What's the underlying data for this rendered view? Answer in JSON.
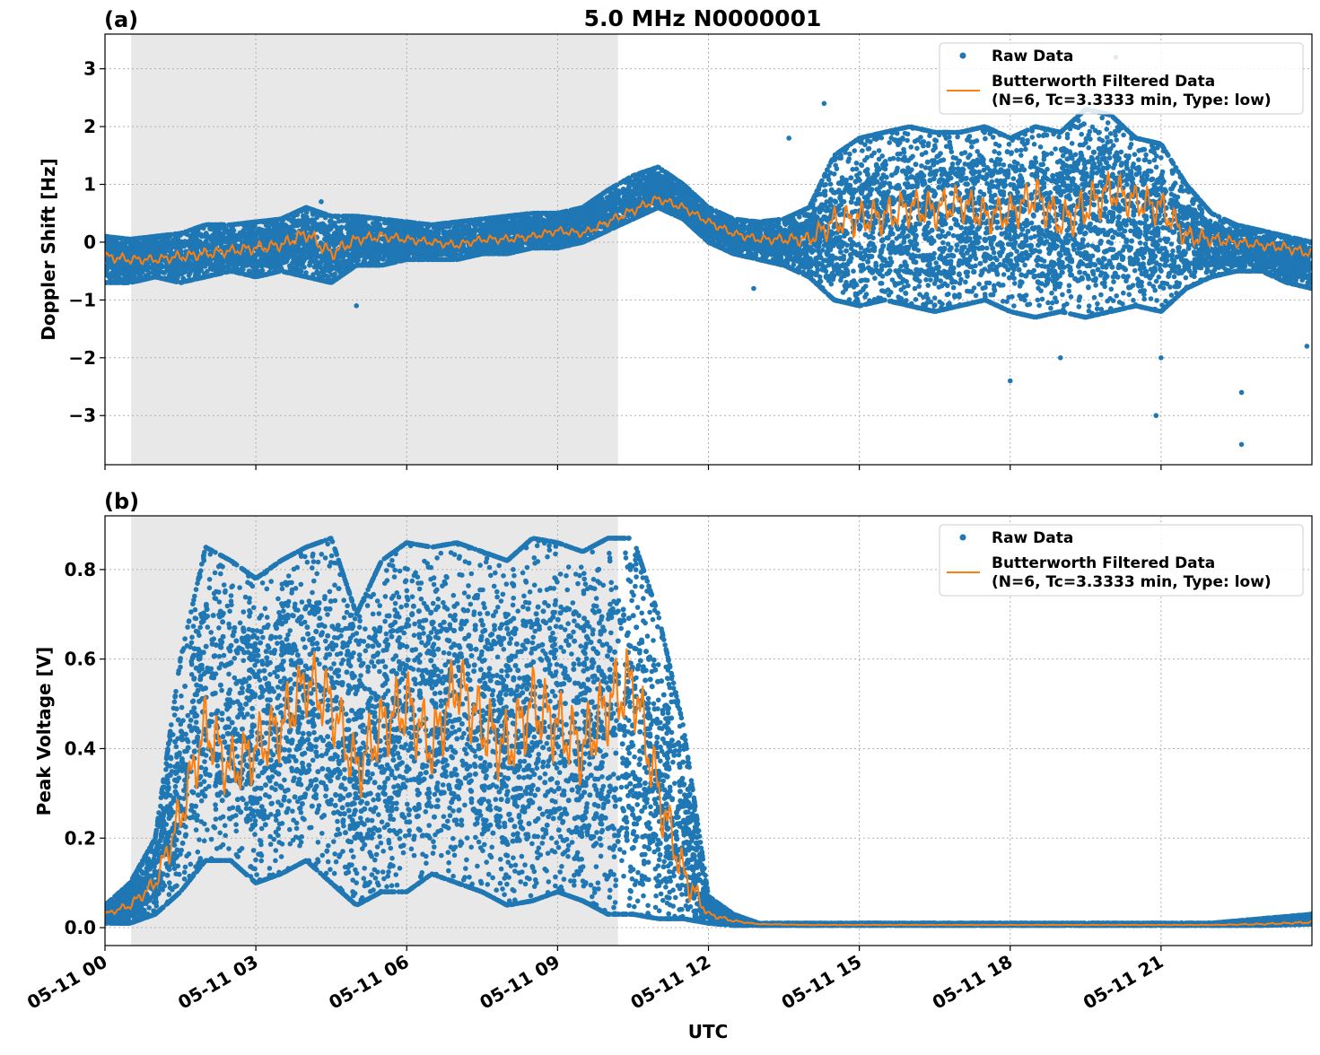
{
  "figure": {
    "title": "5.0 MHz N0000001",
    "xlabel": "UTC",
    "x_ticks": [
      "05-11 00",
      "05-11 03",
      "05-11 06",
      "05-11 09",
      "05-11 12",
      "05-11 15",
      "05-11 18",
      "05-11 21"
    ],
    "colors": {
      "raw": "#1f77b4",
      "filtered": "#ff7f0e",
      "shade": "#e8e8e8"
    }
  },
  "chart_data": [
    {
      "type": "scatter",
      "panel_label": "(a)",
      "ylabel": "Doppler Shift [Hz]",
      "xlim_hours": [
        0,
        24
      ],
      "ylim": [
        -3.85,
        3.6
      ],
      "y_ticks": [
        -3,
        -2,
        -1,
        0,
        1,
        2,
        3
      ],
      "shaded_interval_hours": [
        0.52,
        10.2
      ],
      "grid": true,
      "legend_position": "top-right",
      "legend": [
        "Raw Data",
        "Butterworth Filtered Data",
        "(N=6, Tc=3.3333 min, Type: low)"
      ],
      "series": [
        {
          "name": "Raw Data",
          "kind": "scatter-band",
          "x_hours": [
            0,
            0.5,
            1,
            1.5,
            2,
            2.5,
            3,
            3.5,
            4,
            4.5,
            5,
            5.5,
            6,
            6.5,
            7,
            7.5,
            8,
            8.5,
            9,
            9.5,
            10,
            10.5,
            11,
            11.5,
            12,
            12.5,
            13,
            13.5,
            14,
            14.5,
            15,
            15.5,
            16,
            16.5,
            17,
            17.5,
            18,
            18.5,
            19,
            19.5,
            20,
            20.5,
            21,
            21.5,
            22,
            22.5,
            23,
            23.5,
            24
          ],
          "upper": [
            0.1,
            0.05,
            0.1,
            0.15,
            0.3,
            0.3,
            0.35,
            0.4,
            0.6,
            0.45,
            0.45,
            0.4,
            0.35,
            0.3,
            0.35,
            0.4,
            0.45,
            0.5,
            0.5,
            0.6,
            0.9,
            1.15,
            1.3,
            1.0,
            0.6,
            0.4,
            0.35,
            0.4,
            0.6,
            1.5,
            1.8,
            1.9,
            2.0,
            1.9,
            1.9,
            2.0,
            1.8,
            2.0,
            1.9,
            2.3,
            2.2,
            1.8,
            1.7,
            1.0,
            0.5,
            0.3,
            0.2,
            0.1,
            0.0
          ],
          "lower": [
            -0.7,
            -0.7,
            -0.6,
            -0.7,
            -0.6,
            -0.5,
            -0.6,
            -0.5,
            -0.6,
            -0.7,
            -0.4,
            -0.4,
            -0.3,
            -0.3,
            -0.3,
            -0.2,
            -0.2,
            -0.1,
            -0.1,
            0.0,
            0.2,
            0.4,
            0.6,
            0.4,
            0.0,
            -0.2,
            -0.3,
            -0.4,
            -0.6,
            -1.0,
            -1.1,
            -1.0,
            -1.1,
            -1.2,
            -1.1,
            -1.0,
            -1.2,
            -1.3,
            -1.2,
            -1.3,
            -1.2,
            -1.1,
            -1.2,
            -0.8,
            -0.6,
            -0.5,
            -0.5,
            -0.7,
            -0.8
          ],
          "outliers": [
            [
              5.0,
              -1.1
            ],
            [
              4.3,
              0.7
            ],
            [
              14.3,
              2.4
            ],
            [
              18.0,
              -2.4
            ],
            [
              19.0,
              -2.0
            ],
            [
              20.9,
              -3.0
            ],
            [
              21.0,
              -2.0
            ],
            [
              22.6,
              -2.6
            ],
            [
              22.6,
              -3.5
            ],
            [
              23.9,
              -1.8
            ],
            [
              20.1,
              3.2
            ],
            [
              13.6,
              1.8
            ],
            [
              12.9,
              -0.8
            ]
          ]
        },
        {
          "name": "Butterworth Filtered Data",
          "kind": "line",
          "x_hours": [
            0,
            0.5,
            1,
            1.5,
            2,
            2.5,
            3,
            3.5,
            4,
            4.5,
            5,
            5.5,
            6,
            6.5,
            7,
            7.5,
            8,
            8.5,
            9,
            9.5,
            10,
            10.5,
            11,
            11.5,
            12,
            12.5,
            13,
            13.5,
            14,
            14.5,
            15,
            15.5,
            16,
            16.5,
            17,
            17.5,
            18,
            18.5,
            19,
            19.5,
            20,
            20.5,
            21,
            21.5,
            22,
            22.5,
            23,
            23.5,
            24
          ],
          "y": [
            -0.25,
            -0.3,
            -0.3,
            -0.25,
            -0.2,
            -0.15,
            -0.1,
            -0.05,
            0.15,
            -0.2,
            0.05,
            0.1,
            0.05,
            0.0,
            -0.05,
            0.05,
            0.05,
            0.1,
            0.2,
            0.15,
            0.35,
            0.55,
            0.75,
            0.6,
            0.35,
            0.15,
            0.05,
            0.05,
            0.05,
            0.35,
            0.4,
            0.45,
            0.6,
            0.55,
            0.7,
            0.45,
            0.5,
            0.8,
            0.35,
            0.6,
            0.9,
            0.7,
            0.6,
            0.1,
            0.05,
            0.0,
            -0.05,
            -0.1,
            -0.2
          ]
        }
      ]
    },
    {
      "type": "scatter",
      "panel_label": "(b)",
      "ylabel": "Peak Voltage [V]",
      "xlim_hours": [
        0,
        24
      ],
      "ylim": [
        -0.04,
        0.92
      ],
      "y_ticks": [
        "0.0",
        "0.2",
        "0.4",
        "0.6",
        "0.8"
      ],
      "shaded_interval_hours": [
        0.52,
        10.2
      ],
      "grid": true,
      "legend_position": "top-right",
      "legend": [
        "Raw Data",
        "Butterworth Filtered Data",
        "(N=6, Tc=3.3333 min, Type: low)"
      ],
      "series": [
        {
          "name": "Raw Data",
          "kind": "scatter-band",
          "x_hours": [
            0,
            0.5,
            1,
            1.5,
            2,
            2.5,
            3,
            3.5,
            4,
            4.5,
            5,
            5.5,
            6,
            6.5,
            7,
            7.5,
            8,
            8.5,
            9,
            9.5,
            10,
            10.5,
            11,
            11.5,
            12,
            12.5,
            13,
            14,
            15,
            16,
            17,
            18,
            19,
            20,
            21,
            22,
            23,
            24
          ],
          "upper": [
            0.05,
            0.1,
            0.2,
            0.6,
            0.85,
            0.82,
            0.78,
            0.82,
            0.85,
            0.87,
            0.7,
            0.82,
            0.86,
            0.85,
            0.86,
            0.84,
            0.82,
            0.87,
            0.86,
            0.84,
            0.87,
            0.87,
            0.7,
            0.45,
            0.07,
            0.03,
            0.01,
            0.01,
            0.01,
            0.01,
            0.01,
            0.01,
            0.01,
            0.01,
            0.01,
            0.01,
            0.02,
            0.03
          ],
          "lower": [
            0.01,
            0.01,
            0.03,
            0.08,
            0.15,
            0.15,
            0.1,
            0.12,
            0.15,
            0.1,
            0.05,
            0.08,
            0.08,
            0.12,
            0.1,
            0.08,
            0.05,
            0.06,
            0.08,
            0.06,
            0.03,
            0.03,
            0.02,
            0.02,
            0.01,
            0.005,
            0.005,
            0.005,
            0.005,
            0.005,
            0.005,
            0.005,
            0.005,
            0.005,
            0.005,
            0.005,
            0.005,
            0.008
          ],
          "outliers": []
        },
        {
          "name": "Butterworth Filtered Data",
          "kind": "line",
          "x_hours": [
            0,
            0.5,
            1,
            1.5,
            2,
            2.5,
            3,
            3.5,
            4,
            4.5,
            5,
            5.5,
            6,
            6.5,
            7,
            7.5,
            8,
            8.5,
            9,
            9.5,
            10,
            10.5,
            11,
            11.5,
            12,
            12.5,
            13,
            14,
            15,
            16,
            17,
            18,
            19,
            20,
            21,
            22,
            23,
            24
          ],
          "y": [
            0.03,
            0.05,
            0.1,
            0.25,
            0.45,
            0.35,
            0.4,
            0.45,
            0.55,
            0.5,
            0.35,
            0.45,
            0.5,
            0.4,
            0.55,
            0.45,
            0.4,
            0.5,
            0.45,
            0.4,
            0.5,
            0.55,
            0.3,
            0.12,
            0.03,
            0.015,
            0.008,
            0.006,
            0.006,
            0.006,
            0.006,
            0.006,
            0.006,
            0.006,
            0.006,
            0.006,
            0.008,
            0.012
          ]
        }
      ]
    }
  ]
}
